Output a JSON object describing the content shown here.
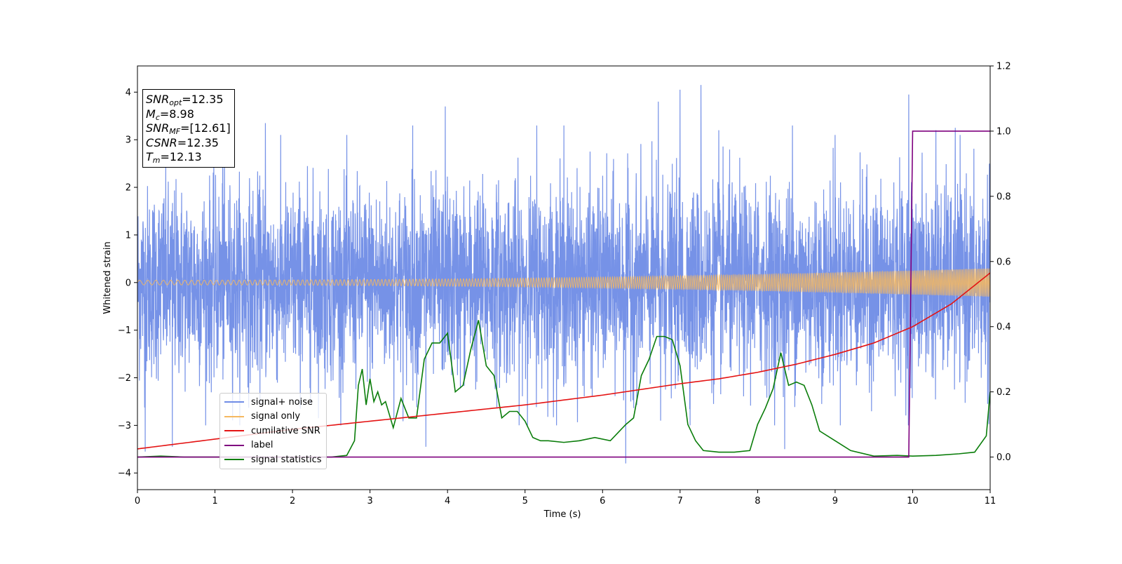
{
  "colors": {
    "signal_noise": "#6f8ce6",
    "signal_only": "#f5b860",
    "cumulative_snr": "#e41313",
    "label": "#7f007f",
    "signal_statistics": "#0a7d0a"
  },
  "info": {
    "snr_opt_base": "SNR",
    "snr_opt_sub": "opt",
    "snr_opt_value": "=12.35",
    "mc_base": "M",
    "mc_sub": "c",
    "mc_value": "=8.98",
    "snr_mf_base": "SNR",
    "snr_mf_sub": "MF",
    "snr_mf_value": "=[12.61]",
    "csnr_base": "CSNR",
    "csnr_value": "=12.35",
    "tm_base": "T",
    "tm_sub": "m",
    "tm_value": "=12.13"
  },
  "legend": [
    {
      "label": "signal+ noise",
      "color": "#6f8ce6"
    },
    {
      "label": "signal only",
      "color": "#f5b860"
    },
    {
      "label": "cumilative SNR",
      "color": "#e41313"
    },
    {
      "label": "label",
      "color": "#7f007f"
    },
    {
      "label": "signal statistics",
      "color": "#0a7d0a"
    }
  ],
  "chart_data": {
    "type": "line",
    "xlabel": "Time (s)",
    "ylabel": "Whitened strain",
    "xlim": [
      0,
      11
    ],
    "ylim": [
      -4.35,
      4.55
    ],
    "y2lim": [
      -0.1,
      1.2
    ],
    "x_ticks": [
      0,
      1,
      2,
      3,
      4,
      5,
      6,
      7,
      8,
      9,
      10,
      11
    ],
    "y_ticks": [
      -4,
      -3,
      -2,
      -1,
      0,
      1,
      2,
      3,
      4
    ],
    "y_tick_labels": [
      "−4",
      "−3",
      "−2",
      "−1",
      "0",
      "1",
      "2",
      "3",
      "4"
    ],
    "y2_ticks": [
      0.0,
      0.2,
      0.4,
      0.6,
      0.8,
      1.0,
      1.2
    ],
    "y2_tick_labels": [
      "0.0",
      "0.2",
      "0.4",
      "0.6",
      "0.8",
      "1.0",
      "1.2"
    ],
    "series": [
      {
        "name": "signal+ noise",
        "axis": "left",
        "kind": "noise_band",
        "note_values": "dense whitened strain samples, approx range",
        "y_range": [
          -3.8,
          4.15
        ],
        "typical_envelope": [
          -2.5,
          2.5
        ],
        "peaks": [
          [
            0.1,
            -3.55
          ],
          [
            0.45,
            -3.45
          ],
          [
            1.1,
            3.45
          ],
          [
            1.65,
            3.35
          ],
          [
            3.55,
            3.3
          ],
          [
            3.72,
            -3.45
          ],
          [
            3.97,
            3.7
          ],
          [
            5.15,
            3.3
          ],
          [
            5.5,
            3.3
          ],
          [
            6.3,
            -3.8
          ],
          [
            6.72,
            3.8
          ],
          [
            6.75,
            -2.9
          ],
          [
            7.0,
            4.05
          ],
          [
            7.27,
            4.15
          ],
          [
            7.5,
            3.2
          ],
          [
            8.35,
            -3.5
          ],
          [
            8.45,
            3.3
          ],
          [
            9.0,
            3.1
          ],
          [
            9.95,
            3.95
          ],
          [
            10.3,
            3.2
          ],
          [
            10.55,
            3.25
          ]
        ]
      },
      {
        "name": "signal only",
        "axis": "left",
        "kind": "chirp",
        "amplitude_start": 0.05,
        "amplitude_end": 0.3,
        "x_range": [
          0,
          11
        ]
      },
      {
        "name": "cumilative SNR",
        "axis": "right",
        "x": [
          0,
          1,
          2,
          3,
          4,
          5,
          6,
          7,
          7.5,
          8,
          8.5,
          9,
          9.5,
          10,
          10.5,
          11
        ],
        "y": [
          0.025,
          0.055,
          0.085,
          0.11,
          0.135,
          0.16,
          0.19,
          0.225,
          0.24,
          0.26,
          0.285,
          0.315,
          0.35,
          0.4,
          0.47,
          0.565
        ]
      },
      {
        "name": "label",
        "axis": "right",
        "x": [
          0,
          9.95,
          10.0,
          11
        ],
        "y": [
          0.0,
          0.0,
          1.0,
          1.0
        ]
      },
      {
        "name": "signal statistics",
        "axis": "right",
        "x": [
          0,
          0.3,
          0.6,
          1,
          1.5,
          2,
          2.5,
          2.7,
          2.8,
          2.85,
          2.9,
          2.95,
          3.0,
          3.05,
          3.1,
          3.15,
          3.2,
          3.3,
          3.4,
          3.5,
          3.6,
          3.7,
          3.8,
          3.9,
          4.0,
          4.1,
          4.2,
          4.3,
          4.4,
          4.5,
          4.6,
          4.7,
          4.8,
          4.9,
          5.0,
          5.1,
          5.2,
          5.3,
          5.5,
          5.7,
          5.9,
          6.1,
          6.2,
          6.3,
          6.4,
          6.5,
          6.6,
          6.7,
          6.8,
          6.9,
          7.0,
          7.1,
          7.2,
          7.3,
          7.5,
          7.7,
          7.9,
          8.0,
          8.1,
          8.2,
          8.3,
          8.4,
          8.5,
          8.6,
          8.7,
          8.8,
          9.0,
          9.2,
          9.5,
          9.8,
          10.0,
          10.3,
          10.6,
          10.8,
          10.95,
          11.0
        ],
        "y": [
          0.0,
          0.003,
          0.0,
          0.0,
          0.0,
          0.0,
          0.0,
          0.005,
          0.05,
          0.22,
          0.27,
          0.16,
          0.24,
          0.17,
          0.2,
          0.16,
          0.17,
          0.09,
          0.18,
          0.12,
          0.12,
          0.3,
          0.35,
          0.35,
          0.38,
          0.2,
          0.22,
          0.33,
          0.42,
          0.28,
          0.25,
          0.12,
          0.14,
          0.14,
          0.11,
          0.06,
          0.05,
          0.05,
          0.045,
          0.05,
          0.06,
          0.05,
          0.075,
          0.1,
          0.12,
          0.25,
          0.3,
          0.37,
          0.37,
          0.36,
          0.28,
          0.1,
          0.05,
          0.02,
          0.015,
          0.015,
          0.02,
          0.1,
          0.15,
          0.21,
          0.32,
          0.22,
          0.23,
          0.22,
          0.16,
          0.08,
          0.05,
          0.02,
          0.003,
          0.005,
          0.003,
          0.005,
          0.01,
          0.015,
          0.065,
          0.2
        ]
      }
    ]
  }
}
